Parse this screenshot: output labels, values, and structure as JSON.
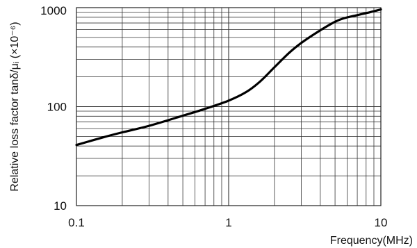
{
  "chart_data": {
    "type": "line",
    "xlabel": "Frequency(MHz)",
    "ylabel": "Relative loss factor tanδ/μᵢ (×10⁻⁶)",
    "x_scale": "log",
    "y_scale": "log",
    "xlim": [
      0.1,
      10
    ],
    "ylim": [
      10,
      1000
    ],
    "x_ticks": [
      {
        "value": 0.1,
        "label": "0.1"
      },
      {
        "value": 1,
        "label": "1"
      },
      {
        "value": 10,
        "label": "10"
      }
    ],
    "y_ticks": [
      {
        "value": 10,
        "label": "10"
      },
      {
        "value": 100,
        "label": "100"
      },
      {
        "value": 1000,
        "label": "1000"
      }
    ],
    "grid": true,
    "series": [
      {
        "x": [
          0.1,
          0.15,
          0.2,
          0.3,
          0.5,
          0.7,
          1.0,
          1.3,
          1.6,
          2.0,
          2.5,
          3.0,
          4.0,
          5.0,
          5.7,
          7.0,
          8.5,
          10.0
        ],
        "y": [
          41,
          49,
          55,
          64,
          81,
          95,
          115,
          140,
          178,
          250,
          350,
          440,
          590,
          720,
          780,
          840,
          900,
          960
        ]
      }
    ]
  }
}
